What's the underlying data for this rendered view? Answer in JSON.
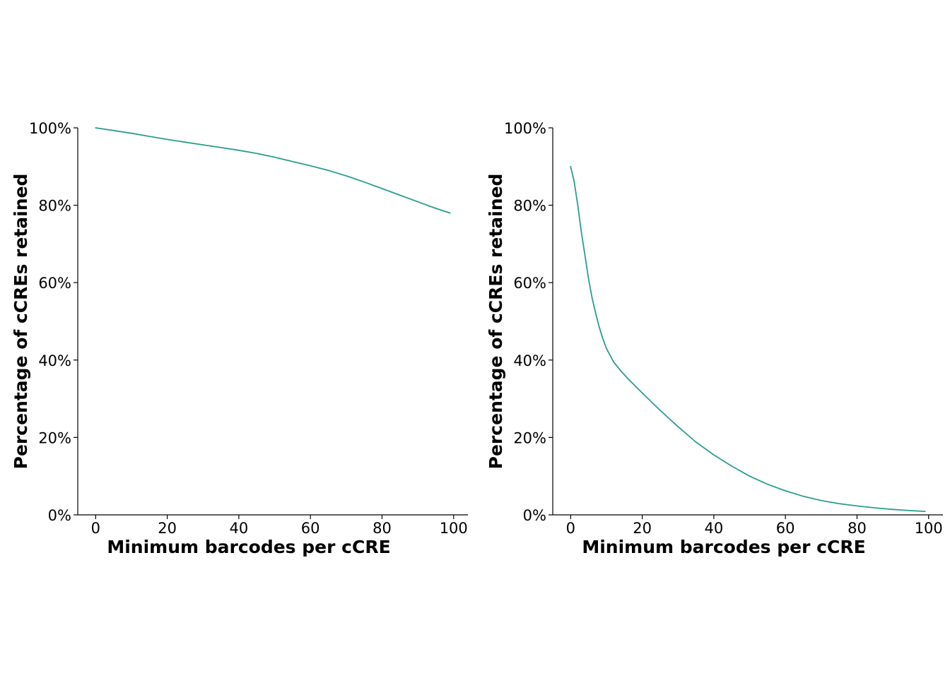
{
  "colors": {
    "series": "#2a9d8f",
    "axis": "#000000",
    "background": "#ffffff"
  },
  "chart_data": [
    {
      "type": "line",
      "title": "",
      "xlabel": "Minimum barcodes per cCRE",
      "ylabel": "Percentage of cCREs retained",
      "xlim": [
        -5,
        104
      ],
      "ylim": [
        0,
        100
      ],
      "xticks": [
        0,
        20,
        40,
        60,
        80,
        100
      ],
      "xtick_labels": [
        "0",
        "20",
        "40",
        "60",
        "80",
        "100"
      ],
      "yticks": [
        0,
        20,
        40,
        60,
        80,
        100
      ],
      "ytick_labels": [
        "0%",
        "20%",
        "40%",
        "60%",
        "80%",
        "100%"
      ],
      "grid": false,
      "legend": "none",
      "series": [
        {
          "x": [
            0,
            5,
            10,
            15,
            20,
            25,
            30,
            35,
            40,
            45,
            50,
            55,
            60,
            65,
            70,
            75,
            80,
            85,
            90,
            95,
            99
          ],
          "y": [
            100,
            99.3,
            98.6,
            97.8,
            97.0,
            96.3,
            95.6,
            94.9,
            94.2,
            93.4,
            92.4,
            91.3,
            90.2,
            89.0,
            87.6,
            86.0,
            84.3,
            82.6,
            80.9,
            79.2,
            78.0
          ]
        }
      ]
    },
    {
      "type": "line",
      "title": "",
      "xlabel": "Minimum barcodes per cCRE",
      "ylabel": "Percentage of cCREs retained",
      "xlim": [
        -5,
        104
      ],
      "ylim": [
        0,
        100
      ],
      "xticks": [
        0,
        20,
        40,
        60,
        80,
        100
      ],
      "xtick_labels": [
        "0",
        "20",
        "40",
        "60",
        "80",
        "100"
      ],
      "yticks": [
        0,
        20,
        40,
        60,
        80,
        100
      ],
      "ytick_labels": [
        "0%",
        "20%",
        "40%",
        "60%",
        "80%",
        "100%"
      ],
      "grid": false,
      "legend": "none",
      "series": [
        {
          "x": [
            0,
            1,
            2,
            3,
            4,
            5,
            6,
            7,
            8,
            9,
            10,
            12,
            14,
            16,
            20,
            25,
            30,
            35,
            40,
            45,
            50,
            55,
            60,
            65,
            70,
            75,
            80,
            85,
            90,
            95,
            99
          ],
          "y": [
            90,
            86,
            80,
            73,
            67,
            61,
            56,
            52,
            48.5,
            45.5,
            43,
            39.5,
            37.2,
            35.2,
            31.5,
            27,
            22.8,
            18.8,
            15.5,
            12.6,
            10.0,
            7.9,
            6.2,
            4.8,
            3.7,
            2.9,
            2.3,
            1.8,
            1.4,
            1.1,
            0.9
          ]
        }
      ]
    }
  ]
}
